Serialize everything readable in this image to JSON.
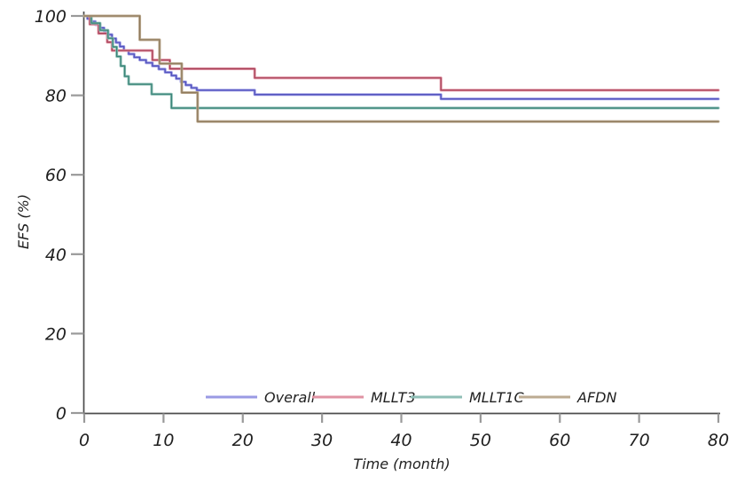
{
  "chart_data": {
    "type": "line",
    "subtype": "step-post-kaplan-meier",
    "title": "",
    "xlabel": "Time (month)",
    "ylabel": "EFS (%)",
    "xlim": [
      0,
      80
    ],
    "ylim": [
      0,
      100
    ],
    "xticks": [
      0,
      10,
      20,
      30,
      40,
      50,
      60,
      70,
      80
    ],
    "yticks": [
      0,
      20,
      40,
      60,
      80,
      100
    ],
    "grid": false,
    "legend_position": "bottom-center-inside",
    "series": [
      {
        "name": "Overall",
        "color_light": "#9a9ae4",
        "color_dark": "#4a4ab8",
        "points": [
          [
            0,
            100
          ],
          [
            0.4,
            99.3
          ],
          [
            0.9,
            98.6
          ],
          [
            1.4,
            97.8
          ],
          [
            2,
            97
          ],
          [
            2.5,
            96.2
          ],
          [
            3,
            95.3
          ],
          [
            3.5,
            94.3
          ],
          [
            4,
            93.3
          ],
          [
            4.5,
            92.3
          ],
          [
            5,
            91.3
          ],
          [
            5.6,
            90.4
          ],
          [
            6.3,
            89.6
          ],
          [
            7,
            88.9
          ],
          [
            7.8,
            88.2
          ],
          [
            8.6,
            87.4
          ],
          [
            9.4,
            86.6
          ],
          [
            10.2,
            85.8
          ],
          [
            11,
            85
          ],
          [
            11.6,
            84.2
          ],
          [
            12.2,
            83.4
          ],
          [
            12.8,
            82.6
          ],
          [
            13.5,
            81.9
          ],
          [
            14.2,
            81.3
          ],
          [
            21.5,
            80.2
          ],
          [
            45,
            79.1
          ]
        ]
      },
      {
        "name": "MLLT3",
        "color_light": "#e093a3",
        "color_dark": "#a23850",
        "points": [
          [
            0,
            100
          ],
          [
            0.7,
            97.9
          ],
          [
            1.8,
            95.6
          ],
          [
            2.9,
            93.4
          ],
          [
            3.5,
            91.3
          ],
          [
            8.6,
            88.9
          ],
          [
            10.8,
            86.7
          ],
          [
            21.5,
            84.4
          ],
          [
            45,
            81.3
          ]
        ]
      },
      {
        "name": "MLLT1C",
        "color_light": "#8fbfb6",
        "color_dark": "#2f7d70",
        "points": [
          [
            0,
            100
          ],
          [
            0.9,
            98.2
          ],
          [
            2,
            96.4
          ],
          [
            3,
            94.4
          ],
          [
            3.6,
            92.2
          ],
          [
            4.1,
            89.8
          ],
          [
            4.6,
            87.4
          ],
          [
            5.1,
            84.8
          ],
          [
            5.6,
            82.8
          ],
          [
            8.5,
            80.3
          ],
          [
            11,
            76.8
          ]
        ]
      },
      {
        "name": "AFDN",
        "color_light": "#bcab92",
        "color_dark": "#8a7455",
        "points": [
          [
            0,
            100
          ],
          [
            7,
            94
          ],
          [
            9.5,
            88
          ],
          [
            12.3,
            80.7
          ],
          [
            14.3,
            73.4
          ]
        ]
      }
    ]
  },
  "colors": {
    "axis": "#4d4d4d",
    "tick": "#999999",
    "text": "#1f1f1f",
    "background": "#ffffff"
  }
}
